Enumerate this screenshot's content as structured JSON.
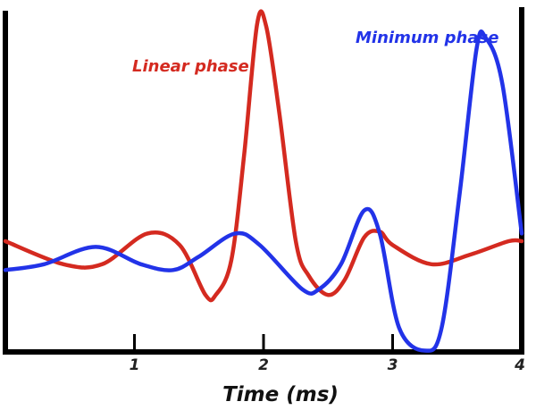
{
  "chart_data": {
    "type": "line",
    "title": "",
    "xlabel": "Time (ms)",
    "ylabel": "",
    "xlim": [
      0,
      4
    ],
    "ylim": [
      -1,
      1
    ],
    "xticks": [
      {
        "value": 1,
        "label": "1"
      },
      {
        "value": 2,
        "label": "2"
      },
      {
        "value": 3,
        "label": "3"
      },
      {
        "value": 4,
        "label": "4"
      }
    ],
    "grid": false,
    "series": [
      {
        "name": "Linear phase",
        "color": "#d42a20",
        "points": [
          [
            0.0,
            0.0
          ],
          [
            0.45,
            -0.12
          ],
          [
            0.75,
            -0.12
          ],
          [
            1.1,
            0.04
          ],
          [
            1.35,
            -0.02
          ],
          [
            1.55,
            -0.28
          ],
          [
            1.63,
            -0.28
          ],
          [
            1.75,
            -0.1
          ],
          [
            1.85,
            0.45
          ],
          [
            1.95,
            1.13
          ],
          [
            2.02,
            1.12
          ],
          [
            2.12,
            0.68
          ],
          [
            2.25,
            0.0
          ],
          [
            2.35,
            -0.18
          ],
          [
            2.5,
            -0.28
          ],
          [
            2.63,
            -0.2
          ],
          [
            2.78,
            0.02
          ],
          [
            2.9,
            0.05
          ],
          [
            3.0,
            -0.02
          ],
          [
            3.3,
            -0.12
          ],
          [
            3.6,
            -0.07
          ],
          [
            3.9,
            0.0
          ],
          [
            4.0,
            0.0
          ]
        ]
      },
      {
        "name": "Minimum phase",
        "color": "#2233e8",
        "points": [
          [
            0.0,
            -0.15
          ],
          [
            0.3,
            -0.12
          ],
          [
            0.7,
            -0.03
          ],
          [
            1.05,
            -0.12
          ],
          [
            1.3,
            -0.15
          ],
          [
            1.5,
            -0.08
          ],
          [
            1.78,
            0.04
          ],
          [
            1.97,
            -0.02
          ],
          [
            2.3,
            -0.25
          ],
          [
            2.43,
            -0.25
          ],
          [
            2.6,
            -0.12
          ],
          [
            2.78,
            0.16
          ],
          [
            2.9,
            0.04
          ],
          [
            3.05,
            -0.45
          ],
          [
            3.25,
            -0.57
          ],
          [
            3.38,
            -0.45
          ],
          [
            3.52,
            0.25
          ],
          [
            3.65,
            1.0
          ],
          [
            3.72,
            1.06
          ],
          [
            3.85,
            0.82
          ],
          [
            4.0,
            0.04
          ]
        ]
      }
    ],
    "annotations": [
      {
        "text": "Linear phase",
        "series": 0
      },
      {
        "text": "Minimum phase",
        "series": 1
      }
    ]
  }
}
